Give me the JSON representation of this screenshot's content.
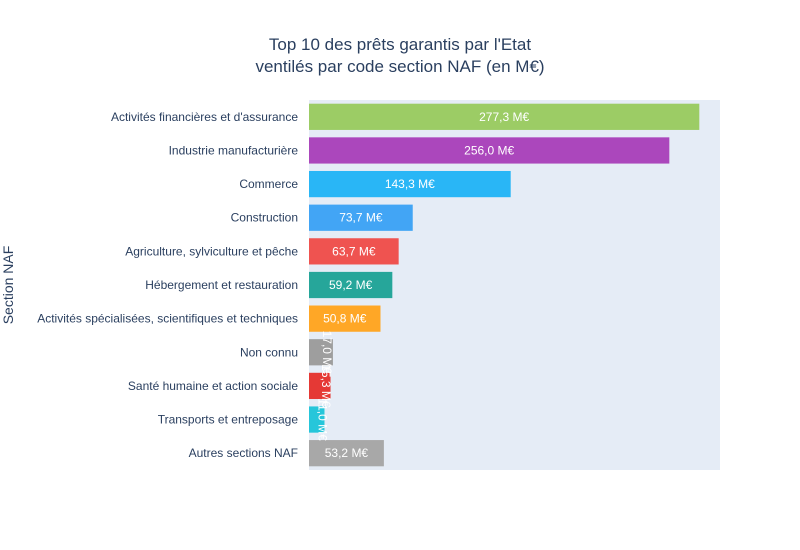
{
  "chart_data": {
    "type": "bar",
    "orientation": "horizontal",
    "title": "Top 10 des prêts garantis par l'Etat",
    "subtitle": "ventilés par code section NAF (en M€)",
    "xlabel": "",
    "ylabel": "Section NAF",
    "xlim": [
      0,
      292
    ],
    "grid": false,
    "categories": [
      "Activités financières et d'assurance",
      "Industrie manufacturière",
      "Commerce",
      "Construction",
      "Agriculture, sylviculture et pêche",
      "Hébergement et restauration",
      "Activités spécialisées, scientifiques et techniques",
      "Non connu",
      "Santé humaine et action sociale",
      "Transports et entreposage",
      "Autres sections NAF"
    ],
    "values": [
      277.3,
      256.0,
      143.3,
      73.7,
      63.7,
      59.2,
      50.8,
      17.0,
      15.3,
      11.0,
      53.2
    ],
    "data_labels": [
      "277,3 M€",
      "256,0 M€",
      "143,3 M€",
      "73,7 M€",
      "63,7 M€",
      "59,2 M€",
      "50,8 M€",
      "17,0 M€",
      "15,3 M€",
      "11,0 M€",
      "53,2 M€"
    ],
    "colors": [
      "#9ccc65",
      "#ab47bc",
      "#29b6f6",
      "#42a5f5",
      "#ef5350",
      "#26a69a",
      "#ffa726",
      "#9e9e9e",
      "#e53935",
      "#26c6da",
      "#a8a8a8"
    ],
    "plot_background": "#e5ecf6"
  }
}
